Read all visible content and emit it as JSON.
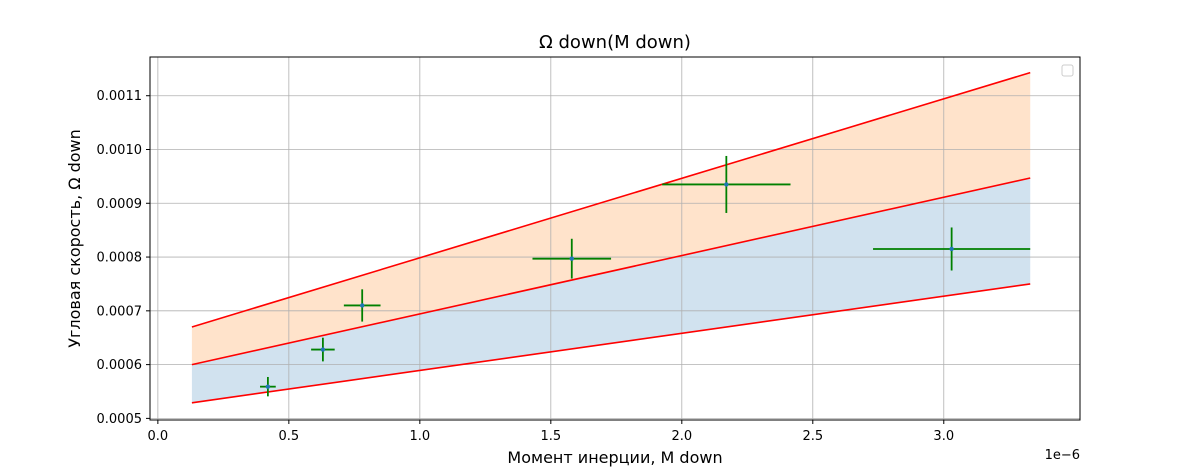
{
  "chart_data": {
    "type": "scatter",
    "title": "Ω down(M down)",
    "xlabel": "Момент инерции, M down",
    "ylabel": "Угловая скорость, Ω down",
    "x_offset_label": "1e−6",
    "x_scale": 1e-06,
    "xlim": [
      -0.03,
      3.52
    ],
    "ylim": [
      0.000497,
      0.001172
    ],
    "xticks": [
      0.0,
      0.5,
      1.0,
      1.5,
      2.0,
      2.5,
      3.0
    ],
    "xtick_labels": [
      "0.0",
      "0.5",
      "1.0",
      "1.5",
      "2.0",
      "2.5",
      "3.0"
    ],
    "yticks": [
      0.0005,
      0.0006,
      0.0007,
      0.0008,
      0.0009,
      0.001,
      0.0011
    ],
    "ytick_labels": [
      "0.0005",
      "0.0006",
      "0.0007",
      "0.0008",
      "0.0009",
      "0.0010",
      "0.0011"
    ],
    "grid": true,
    "legend_placement": "top-right",
    "points": [
      {
        "x": 0.42,
        "y": 0.000559,
        "xerr": 0.03,
        "yerr": 1.8e-05
      },
      {
        "x": 0.63,
        "y": 0.000628,
        "xerr": 0.045,
        "yerr": 2.2e-05
      },
      {
        "x": 0.78,
        "y": 0.00071,
        "xerr": 0.07,
        "yerr": 3e-05
      },
      {
        "x": 1.58,
        "y": 0.000797,
        "xerr": 0.15,
        "yerr": 3.7e-05
      },
      {
        "x": 2.17,
        "y": 0.000935,
        "xerr": 0.245,
        "yerr": 5.3e-05
      },
      {
        "x": 3.03,
        "y": 0.000815,
        "xerr": 0.3,
        "yerr": 4e-05
      }
    ],
    "lines": [
      {
        "name": "upper",
        "x": [
          0.13,
          3.33
        ],
        "y": [
          0.00067,
          0.001143
        ]
      },
      {
        "name": "middle",
        "x": [
          0.13,
          3.33
        ],
        "y": [
          0.0006,
          0.000947
        ]
      },
      {
        "name": "lower",
        "x": [
          0.13,
          3.33
        ],
        "y": [
          0.000529,
          0.00075
        ]
      }
    ],
    "fills": [
      {
        "between": [
          "middle",
          "upper"
        ],
        "color": "#ffe3cb"
      },
      {
        "between": [
          "lower",
          "middle"
        ],
        "color": "#d1e2ef"
      }
    ],
    "colors": {
      "line": "#ff0000",
      "errorbar": "#008000",
      "marker": "#1f77b4",
      "grid": "#b0b0b0",
      "axis": "#000000"
    }
  }
}
